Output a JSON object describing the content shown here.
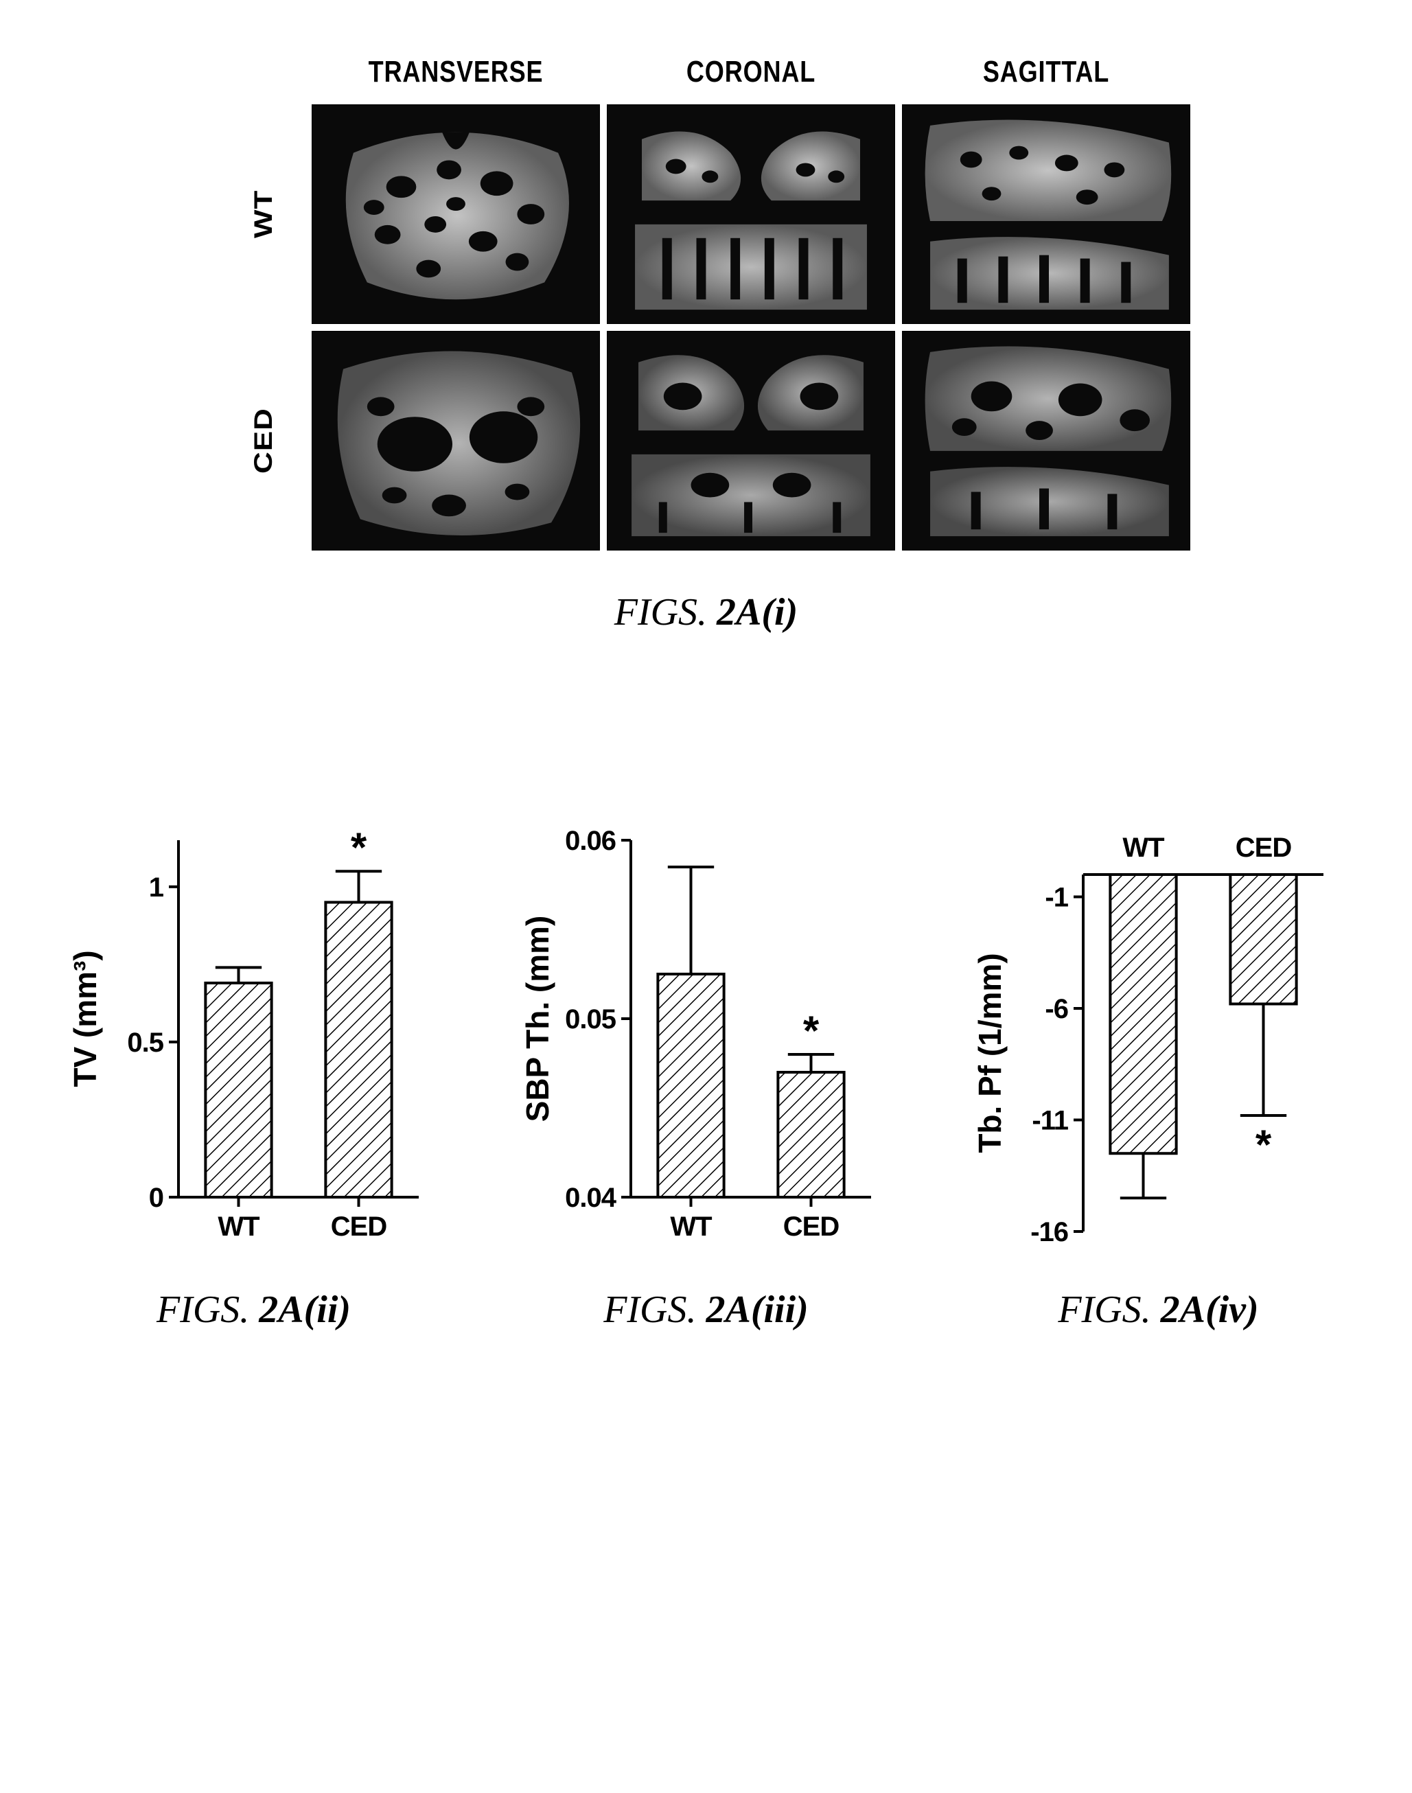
{
  "panel_grid": {
    "caption_prefix": "FIGS.",
    "caption_id": "2A(i)",
    "col_headers": [
      "TRANSVERSE",
      "CORONAL",
      "SAGITTAL"
    ],
    "row_labels": [
      "WT",
      "CED"
    ],
    "cell_bg": "#0a0a0a",
    "bone_fill": "#d7d7d7",
    "bone_stroke": "#bfbfbf"
  },
  "chart_ii": {
    "caption_prefix": "FIGS.",
    "caption_id": "2A(ii)",
    "type": "bar",
    "ylabel": "TV (mm³)",
    "ylabel_fontsize": 46,
    "ylim": [
      0,
      1.15
    ],
    "yticks": [
      0,
      0.5,
      1
    ],
    "ytick_labels": [
      "0",
      "0.5",
      "1"
    ],
    "categories": [
      "WT",
      "CED"
    ],
    "values": [
      0.69,
      0.95
    ],
    "errors": [
      0.05,
      0.1
    ],
    "sig_marks": [
      "",
      "*"
    ],
    "bar_width": 0.55,
    "hatch": true,
    "axis_color": "#000000",
    "bar_stroke": "#000000",
    "background": "#ffffff"
  },
  "chart_iii": {
    "caption_prefix": "FIGS.",
    "caption_id": "2A(iii)",
    "type": "bar",
    "ylabel": "SBP Th. (mm)",
    "ylabel_fontsize": 46,
    "ylim": [
      0.04,
      0.06
    ],
    "yticks": [
      0.04,
      0.05,
      0.06
    ],
    "ytick_labels": [
      "0.04",
      "0.05",
      "0.06"
    ],
    "categories": [
      "WT",
      "CED"
    ],
    "values": [
      0.0525,
      0.047
    ],
    "errors": [
      0.006,
      0.001
    ],
    "sig_marks": [
      "",
      "*"
    ],
    "bar_width": 0.55,
    "hatch": true,
    "axis_color": "#000000",
    "bar_stroke": "#000000",
    "background": "#ffffff"
  },
  "chart_iv": {
    "caption_prefix": "FIGS.",
    "caption_id": "2A(iv)",
    "type": "bar-negative",
    "ylabel": "Tb. Pf (1/mm)",
    "ylabel_fontsize": 46,
    "ylim": [
      -16,
      0
    ],
    "yticks": [
      -16,
      -11,
      -6,
      -1
    ],
    "ytick_labels": [
      "-16",
      "-11",
      "-6",
      "-1"
    ],
    "categories": [
      "WT",
      "CED"
    ],
    "values": [
      -12.5,
      -5.8
    ],
    "errors": [
      2.0,
      5.0
    ],
    "sig_marks": [
      "",
      "*"
    ],
    "sig_y": [
      -11.2,
      -11.2
    ],
    "top_labels": true,
    "bar_width": 0.55,
    "hatch": true,
    "axis_color": "#000000",
    "bar_stroke": "#000000",
    "background": "#ffffff"
  },
  "style": {
    "header_fontsize": 44,
    "caption_fontsize": 56,
    "tick_fontsize": 40,
    "hatch_spacing": 14,
    "hatch_angle": 45,
    "hatch_stroke": "#000000",
    "hatch_stroke_width": 3
  }
}
